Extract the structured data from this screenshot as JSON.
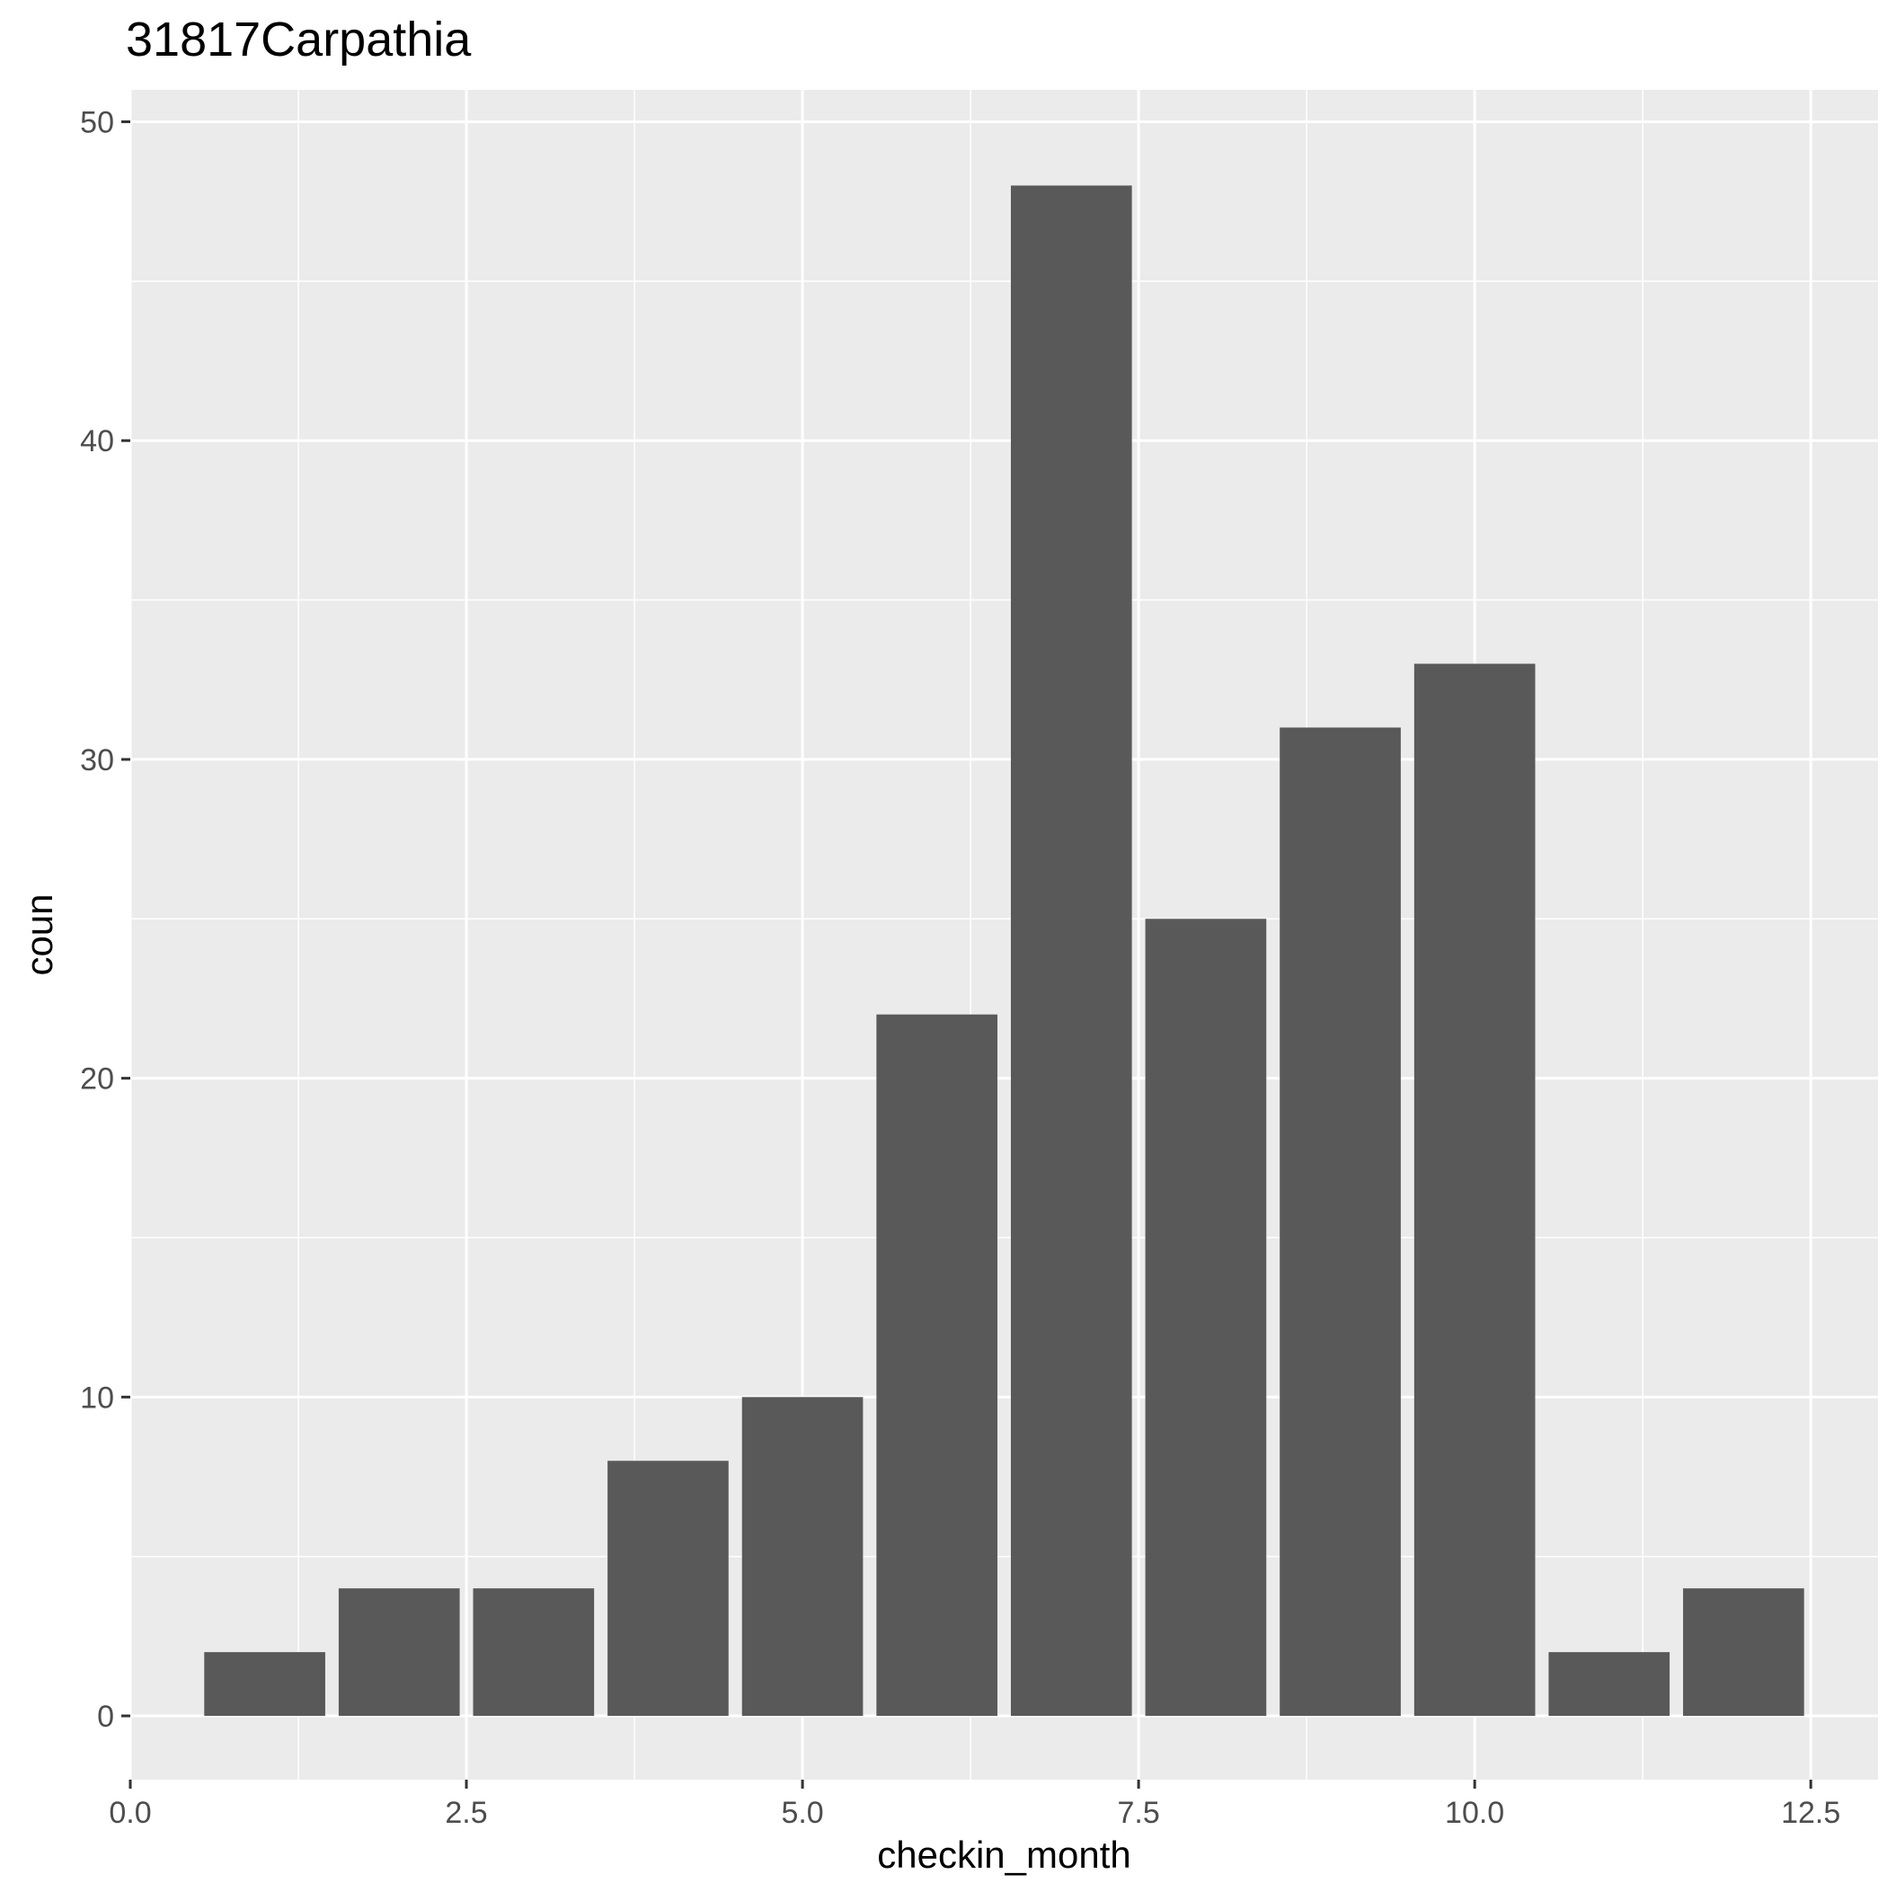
{
  "chart_data": {
    "type": "bar",
    "title": "31817Carpathia",
    "xlabel": "checkin_month",
    "ylabel": "coun",
    "x": [
      1,
      2,
      3,
      4,
      5,
      6,
      7,
      8,
      9,
      10,
      11,
      12
    ],
    "values": [
      2,
      4,
      4,
      8,
      10,
      22,
      48,
      25,
      31,
      33,
      2,
      4
    ],
    "bar_width": 0.9,
    "xlim": [
      0,
      13
    ],
    "ylim": [
      -2,
      51
    ],
    "x_ticks": [
      0,
      2.5,
      5,
      7.5,
      10,
      12.5
    ],
    "x_tick_labels": [
      "0.0",
      "2.5",
      "5.0",
      "7.5",
      "10.0",
      "12.5"
    ],
    "y_ticks": [
      0,
      10,
      20,
      30,
      40,
      50
    ],
    "y_tick_labels": [
      "0",
      "10",
      "20",
      "30",
      "40",
      "50"
    ],
    "grid": true,
    "colors": {
      "panel": "#EBEBEB",
      "grid": "#FFFFFF",
      "bar": "#595959",
      "tick": "#333333"
    }
  }
}
